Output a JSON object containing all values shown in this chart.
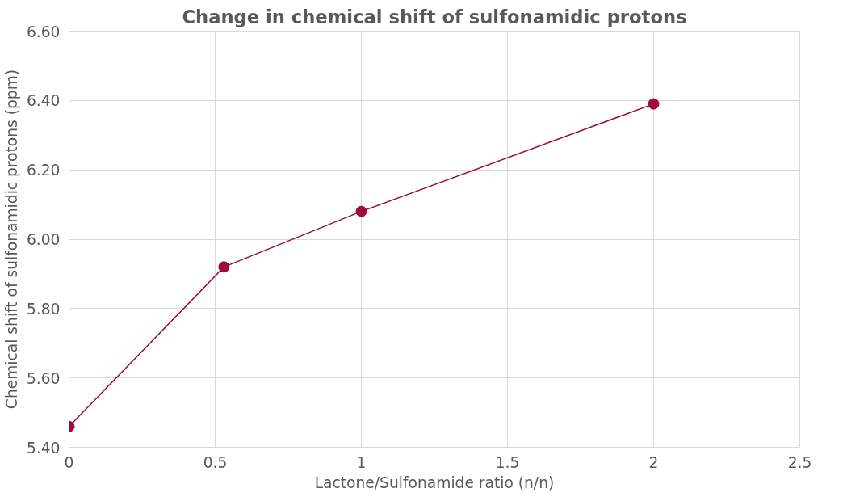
{
  "chart_data": {
    "type": "line",
    "title": "Change in chemical shift of sulfonamidic protons",
    "xlabel": "Lactone/Sulfonamide ratio (n/n)",
    "ylabel": "Chemical shift of sulfonamidic protons (ppm)",
    "x": [
      0,
      0.53,
      1,
      2
    ],
    "series": [
      {
        "color": "#9e0b3b",
        "values": [
          5.46,
          5.92,
          6.08,
          6.39
        ]
      }
    ],
    "xlim": [
      0,
      2.5
    ],
    "xticks": [
      0,
      0.5,
      1,
      1.5,
      2,
      2.5
    ],
    "ylim": [
      5.4,
      6.6
    ],
    "yticks": [
      {
        "value": 5.4,
        "label": "5.40"
      },
      {
        "value": 5.6,
        "label": "5.60"
      },
      {
        "value": 5.8,
        "label": "5.80"
      },
      {
        "value": 6.0,
        "label": "6.00"
      },
      {
        "value": 6.2,
        "label": "6.20"
      },
      {
        "value": 6.4,
        "label": "6.40"
      },
      {
        "value": 6.6,
        "label": "6.60"
      }
    ],
    "grid": true,
    "marker": "circle",
    "line_style": "solid"
  }
}
